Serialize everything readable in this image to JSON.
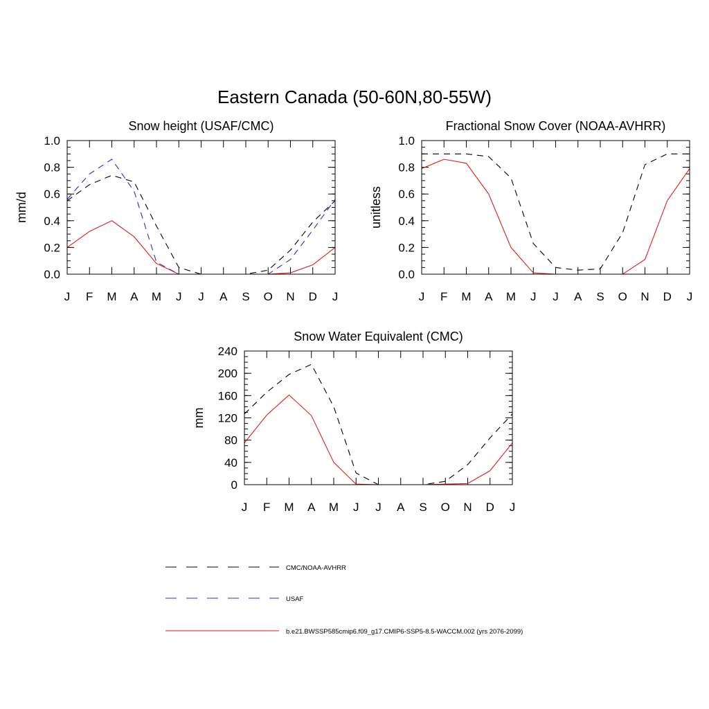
{
  "figure_title": "Eastern Canada (50-60N,80-55W)",
  "colors": {
    "obs": "#000000",
    "usaf": "#2a2ad6",
    "model": "#e31a1c"
  },
  "legend": [
    {
      "label": "CMC/NOAA-AVHRR",
      "color": "#000000",
      "dash": "dashed"
    },
    {
      "label": "USAF",
      "color": "#2a2ad6",
      "dash": "dashed"
    },
    {
      "label": "b.e21.BWSSP585cmip6.f09_g17.CMIP6-SSP5-8.5-WACCM.002 (yrs 2076-2099)",
      "color": "#e31a1c",
      "dash": "solid"
    }
  ],
  "chart_data": [
    {
      "id": "snow-height",
      "type": "line",
      "title": "Snow height (USAF/CMC)",
      "ylabel": "mm/d",
      "xlabel": "",
      "categories": [
        "J",
        "F",
        "M",
        "A",
        "M",
        "J",
        "J",
        "A",
        "S",
        "O",
        "N",
        "D",
        "J"
      ],
      "ylim": [
        0,
        1.0
      ],
      "yticks": [
        "0.0",
        "0.2",
        "0.4",
        "0.6",
        "0.8",
        "1.0"
      ],
      "ytick_values": [
        0,
        0.2,
        0.4,
        0.6,
        0.8,
        1.0
      ],
      "minor_step": 0.05,
      "series": [
        {
          "key": "obs",
          "values": [
            0.55,
            0.67,
            0.74,
            0.69,
            0.36,
            0.05,
            0.0,
            0.0,
            0.0,
            0.03,
            0.18,
            0.39,
            0.55
          ]
        },
        {
          "key": "usaf",
          "values": [
            0.56,
            0.75,
            0.86,
            0.62,
            0.09,
            0.0,
            0.0,
            0.0,
            0.0,
            0.0,
            0.11,
            0.33,
            0.56
          ]
        },
        {
          "key": "model",
          "values": [
            0.2,
            0.32,
            0.4,
            0.28,
            0.08,
            0.0,
            0.0,
            0.0,
            0.0,
            0.0,
            0.01,
            0.07,
            0.2
          ]
        }
      ]
    },
    {
      "id": "fractional-snow-cover",
      "type": "line",
      "title": "Fractional Snow Cover (NOAA-AVHRR)",
      "ylabel": "unitless",
      "xlabel": "",
      "categories": [
        "J",
        "F",
        "M",
        "A",
        "M",
        "J",
        "J",
        "A",
        "S",
        "O",
        "N",
        "D",
        "J"
      ],
      "ylim": [
        0,
        1.0
      ],
      "yticks": [
        "0.0",
        "0.2",
        "0.4",
        "0.6",
        "0.8",
        "1.0"
      ],
      "ytick_values": [
        0,
        0.2,
        0.4,
        0.6,
        0.8,
        1.0
      ],
      "minor_step": 0.05,
      "series": [
        {
          "key": "obs",
          "values": [
            0.9,
            0.9,
            0.9,
            0.88,
            0.72,
            0.23,
            0.05,
            0.03,
            0.04,
            0.31,
            0.82,
            0.9,
            0.9
          ]
        },
        {
          "key": "model",
          "values": [
            0.79,
            0.86,
            0.83,
            0.6,
            0.2,
            0.01,
            0.0,
            0.0,
            0.0,
            0.0,
            0.11,
            0.55,
            0.79
          ]
        }
      ]
    },
    {
      "id": "snow-water-equivalent",
      "type": "line",
      "title": "Snow Water Equivalent (CMC)",
      "ylabel": "mm",
      "xlabel": "",
      "categories": [
        "J",
        "F",
        "M",
        "A",
        "M",
        "J",
        "J",
        "A",
        "S",
        "O",
        "N",
        "D",
        "J"
      ],
      "ylim": [
        0,
        240
      ],
      "yticks": [
        "0",
        "40",
        "80",
        "120",
        "160",
        "200",
        "240"
      ],
      "ytick_values": [
        0,
        40,
        80,
        120,
        160,
        200,
        240
      ],
      "minor_step": 10,
      "series": [
        {
          "key": "obs",
          "values": [
            127,
            166,
            198,
            216,
            140,
            21,
            0,
            0,
            0,
            6,
            36,
            84,
            127
          ]
        },
        {
          "key": "model",
          "values": [
            75,
            125,
            161,
            124,
            40,
            1,
            0,
            0,
            0,
            1,
            2,
            25,
            75
          ]
        }
      ]
    }
  ]
}
